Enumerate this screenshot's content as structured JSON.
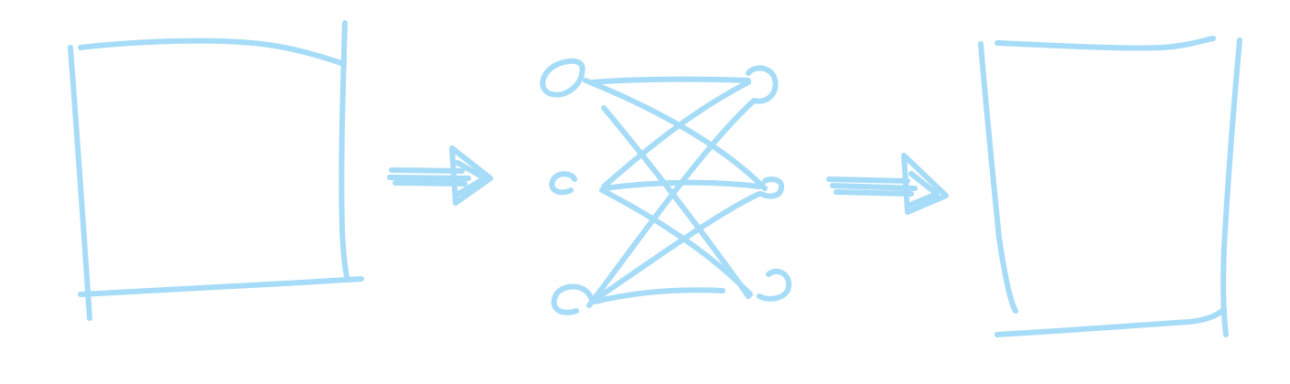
{
  "diagram": {
    "description_free": true,
    "stroke_color": "#a6dcf7",
    "background_color": "#ffffff",
    "network": {
      "left_nodes": 3,
      "right_nodes": 3
    }
  }
}
